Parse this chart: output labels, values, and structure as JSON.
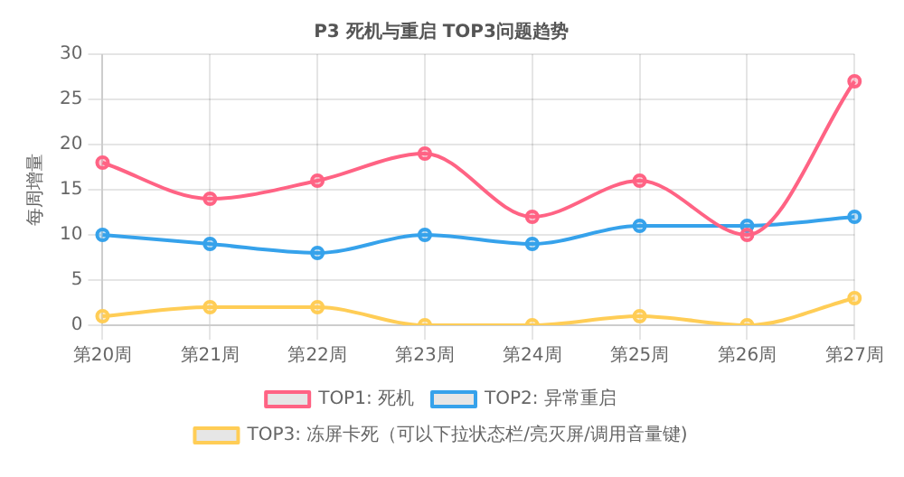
{
  "chart_data": {
    "type": "line",
    "title": "P3 死机与重启 TOP3问题趋势",
    "ylabel": "每周增量",
    "categories": [
      "第20周",
      "第21周",
      "第22周",
      "第23周",
      "第24周",
      "第25周",
      "第26周",
      "第27周"
    ],
    "series": [
      {
        "name": "TOP1: 死机",
        "color": "#ff6384",
        "values": [
          18,
          14,
          16,
          19,
          12,
          16,
          10,
          27
        ]
      },
      {
        "name": "TOP2: 异常重启",
        "color": "#36a2eb",
        "values": [
          10,
          9,
          8,
          10,
          9,
          11,
          11,
          12
        ]
      },
      {
        "name": "TOP3: 冻屏卡死（可以下拉状态栏/亮灭屏/调用音量键)",
        "color": "#ffcd56",
        "values": [
          1,
          2,
          2,
          0,
          0,
          1,
          0,
          3
        ]
      }
    ],
    "ylim": [
      0,
      30
    ],
    "yticks": [
      0,
      5,
      10,
      15,
      20,
      25,
      30
    ],
    "grid": true,
    "legend": "bottom",
    "marker": "circle",
    "line_style": "solid"
  }
}
